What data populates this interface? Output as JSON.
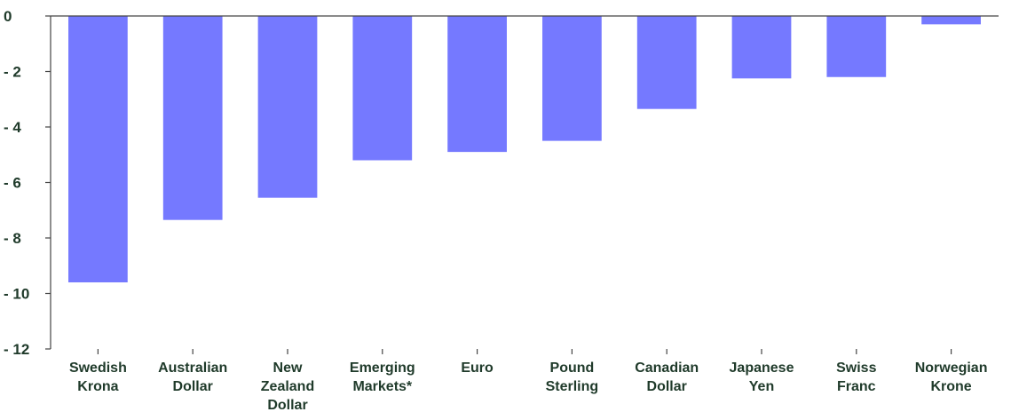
{
  "chart_data": {
    "type": "bar",
    "categories": [
      [
        "Swedish",
        "Krona"
      ],
      [
        "Australian",
        "Dollar"
      ],
      [
        "New",
        "Zealand",
        "Dollar"
      ],
      [
        "Emerging",
        "Markets*"
      ],
      [
        "Euro"
      ],
      [
        "Pound",
        "Sterling"
      ],
      [
        "Canadian",
        "Dollar"
      ],
      [
        "Japanese",
        "Yen"
      ],
      [
        "Swiss",
        "Franc"
      ],
      [
        "Norwegian",
        "Krone"
      ]
    ],
    "values": [
      -9.6,
      -7.35,
      -6.55,
      -5.2,
      -4.9,
      -4.5,
      -3.35,
      -2.25,
      -2.2,
      -0.3
    ],
    "yticks": [
      0,
      -2,
      -4,
      -6,
      -8,
      -10,
      -12
    ],
    "ylim": [
      -12,
      0
    ],
    "grid": false,
    "legend": "none",
    "title": "",
    "xlabel": "",
    "ylabel": "",
    "bar_color": "#7579ff",
    "text_color": "#1f3a2a"
  }
}
